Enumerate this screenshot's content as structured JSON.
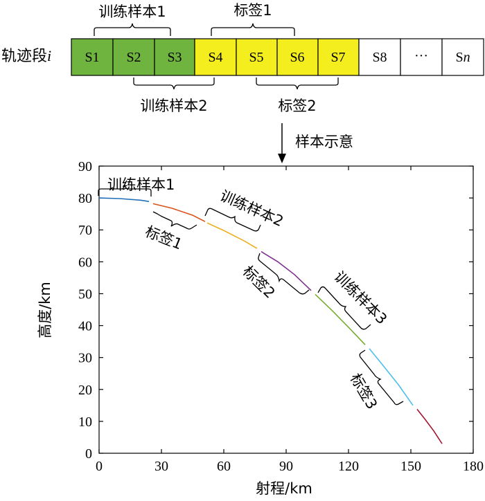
{
  "segments": {
    "row_label_prefix": "轨迹段",
    "row_label_var": "i",
    "cells": [
      {
        "label": "S1",
        "fill": "#6fb43f"
      },
      {
        "label": "S2",
        "fill": "#6fb43f"
      },
      {
        "label": "S3",
        "fill": "#6fb43f"
      },
      {
        "label": "S4",
        "fill": "#f4ee1f"
      },
      {
        "label": "S5",
        "fill": "#f4ee1f"
      },
      {
        "label": "S6",
        "fill": "#f4ee1f"
      },
      {
        "label": "S7",
        "fill": "#f4ee1f"
      },
      {
        "label": "S8",
        "fill": "#ffffff"
      },
      {
        "label": "···",
        "fill": "#ffffff"
      },
      {
        "label": "S",
        "label_var": "n",
        "fill": "#ffffff"
      }
    ],
    "top_braces": [
      {
        "text": "训练样本1"
      },
      {
        "text": "标签1"
      }
    ],
    "bottom_braces": [
      {
        "text": "训练样本2"
      },
      {
        "text": "标签2"
      }
    ],
    "arrow_label": "样本示意"
  },
  "chart_data": {
    "type": "line",
    "title": "",
    "xlabel": "射程/km",
    "ylabel": "高度/km",
    "xlim": [
      0,
      180
    ],
    "ylim": [
      0,
      90
    ],
    "xticks": [
      0,
      30,
      60,
      90,
      120,
      150,
      180
    ],
    "yticks": [
      0,
      10,
      20,
      30,
      40,
      50,
      60,
      70,
      80,
      90
    ],
    "series": [
      {
        "color": "#1f6fb8",
        "points": [
          [
            0,
            80
          ],
          [
            10,
            79.8
          ],
          [
            20,
            79.3
          ],
          [
            24,
            78.9
          ]
        ]
      },
      {
        "color": "#d95319",
        "points": [
          [
            26,
            78.2
          ],
          [
            35,
            76.8
          ],
          [
            45,
            74.6
          ],
          [
            51,
            72.6
          ]
        ]
      },
      {
        "color": "#edb120",
        "points": [
          [
            52,
            72.2
          ],
          [
            60,
            69.8
          ],
          [
            70,
            66.5
          ],
          [
            76,
            64.2
          ]
        ]
      },
      {
        "color": "#7e2f8e",
        "points": [
          [
            78,
            63.2
          ],
          [
            86,
            60
          ],
          [
            94,
            56
          ],
          [
            102,
            51
          ]
        ]
      },
      {
        "color": "#77ac30",
        "points": [
          [
            104,
            49.8
          ],
          [
            112,
            44.8
          ],
          [
            120,
            39.5
          ],
          [
            128,
            34
          ]
        ]
      },
      {
        "color": "#4dbeee",
        "points": [
          [
            130,
            32.8
          ],
          [
            136,
            28
          ],
          [
            144,
            21.5
          ],
          [
            151,
            15
          ]
        ]
      },
      {
        "color": "#a2142f",
        "points": [
          [
            153,
            13.8
          ],
          [
            157,
            10.5
          ],
          [
            161,
            7
          ],
          [
            165,
            3
          ]
        ]
      }
    ],
    "annotations": [
      {
        "text": "训练样本1",
        "angle": 0
      },
      {
        "text": "标签1",
        "angle": 28
      },
      {
        "text": "训练样本2",
        "angle": 24
      },
      {
        "text": "标签2",
        "angle": 45
      },
      {
        "text": "训练样本3",
        "angle": 45
      },
      {
        "text": "标签3",
        "angle": 60
      }
    ]
  }
}
